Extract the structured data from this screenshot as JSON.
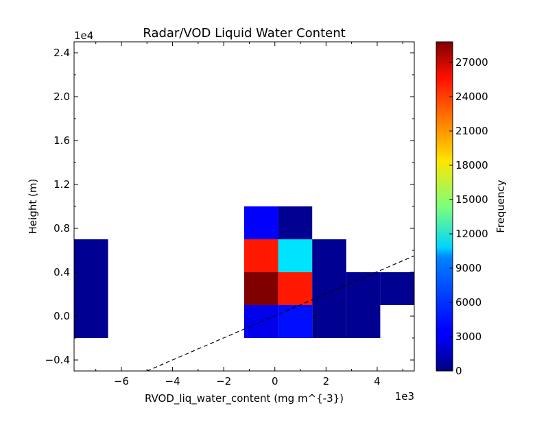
{
  "chart_data": {
    "type": "heatmap",
    "title": "Radar/VOD Liquid Water Content",
    "xlabel": "RVOD_liq_water_content (mg m^{-3})",
    "ylabel": "Height (m)",
    "x_multiplier_label": "1e3",
    "y_multiplier_label": "1e4",
    "xlim": [
      -7.85,
      5.45
    ],
    "ylim": [
      -0.5,
      2.5
    ],
    "x_ticks": [
      -6,
      -4,
      -2,
      0,
      2,
      4
    ],
    "x_tick_labels": [
      "−6",
      "−4",
      "−2",
      "0",
      "2",
      "4"
    ],
    "y_ticks": [
      -0.4,
      0.0,
      0.4,
      0.8,
      1.2,
      1.6,
      2.0,
      2.4
    ],
    "y_tick_labels": [
      "−0.4",
      "0.0",
      "0.4",
      "0.8",
      "1.2",
      "1.6",
      "2.0",
      "2.4"
    ],
    "cells": [
      {
        "x0": -7.85,
        "x1": -6.52,
        "y0": -0.2,
        "y1": 0.1,
        "value": 500
      },
      {
        "x0": -7.85,
        "x1": -6.52,
        "y0": 0.1,
        "y1": 0.4,
        "value": 500
      },
      {
        "x0": -7.85,
        "x1": -6.52,
        "y0": 0.4,
        "y1": 0.7,
        "value": 500
      },
      {
        "x0": -1.2,
        "x1": 0.13,
        "y0": -0.2,
        "y1": 0.1,
        "value": 3000
      },
      {
        "x0": -1.2,
        "x1": 0.13,
        "y0": 0.1,
        "y1": 0.4,
        "value": 28800
      },
      {
        "x0": -1.2,
        "x1": 0.13,
        "y0": 0.4,
        "y1": 0.7,
        "value": 24500
      },
      {
        "x0": -1.2,
        "x1": 0.13,
        "y0": 0.7,
        "y1": 1.0,
        "value": 3500
      },
      {
        "x0": 0.13,
        "x1": 1.46,
        "y0": -0.2,
        "y1": 0.1,
        "value": 4000
      },
      {
        "x0": 0.13,
        "x1": 1.46,
        "y0": 0.1,
        "y1": 0.4,
        "value": 24500
      },
      {
        "x0": 0.13,
        "x1": 1.46,
        "y0": 0.4,
        "y1": 0.7,
        "value": 10000
      },
      {
        "x0": 0.13,
        "x1": 1.46,
        "y0": 0.7,
        "y1": 1.0,
        "value": 500
      },
      {
        "x0": 1.46,
        "x1": 2.79,
        "y0": -0.2,
        "y1": 0.1,
        "value": 500
      },
      {
        "x0": 1.46,
        "x1": 2.79,
        "y0": 0.1,
        "y1": 0.4,
        "value": 500
      },
      {
        "x0": 1.46,
        "x1": 2.79,
        "y0": 0.4,
        "y1": 0.7,
        "value": 500
      },
      {
        "x0": 2.79,
        "x1": 4.12,
        "y0": -0.2,
        "y1": 0.1,
        "value": 500
      },
      {
        "x0": 2.79,
        "x1": 4.12,
        "y0": 0.1,
        "y1": 0.4,
        "value": 500
      },
      {
        "x0": 4.12,
        "x1": 5.45,
        "y0": 0.1,
        "y1": 0.4,
        "value": 500
      }
    ],
    "reference_line": {
      "style": "dashed",
      "x": [
        -5.0,
        5.45
      ],
      "y": [
        -0.5,
        0.55
      ]
    },
    "colorbar": {
      "label": "Frequency",
      "colormap": "jet",
      "min": 0,
      "max": 28800,
      "ticks": [
        0,
        3000,
        6000,
        9000,
        12000,
        15000,
        18000,
        21000,
        24000,
        27000
      ],
      "tick_labels": [
        "0",
        "3000",
        "6000",
        "9000",
        "12000",
        "15000",
        "18000",
        "21000",
        "24000",
        "27000"
      ]
    },
    "grid": false,
    "legend": "none"
  }
}
